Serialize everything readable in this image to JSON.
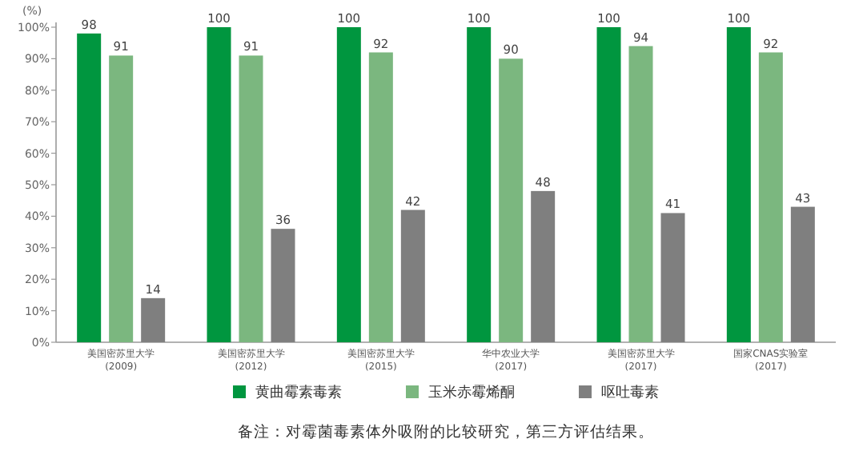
{
  "chart_data": {
    "type": "bar",
    "ylabel": "(%)",
    "categories": [
      "美国密苏里大学\n(2009)",
      "美国密苏里大学\n(2012)",
      "美国密苏里大学\n(2015)",
      "华中农业大学\n(2017)",
      "美国密苏里大学\n(2017)",
      "国家CNAS实验室\n(2017)"
    ],
    "series": [
      {
        "name": "黄曲霉素毒素",
        "color": "#00963f",
        "values": [
          98,
          100,
          100,
          100,
          100,
          100
        ]
      },
      {
        "name": "玉米赤霉烯酮",
        "color": "#7bb77f",
        "values": [
          91,
          91,
          92,
          90,
          94,
          92
        ]
      },
      {
        "name": "呕吐毒素",
        "color": "#7f7f7f",
        "values": [
          14,
          36,
          42,
          48,
          41,
          43
        ]
      }
    ],
    "ylim": [
      0,
      100
    ],
    "yticks": [
      {
        "value": 0,
        "label": "0%"
      },
      {
        "value": 10,
        "label": "10%"
      },
      {
        "value": 20,
        "label": "20%"
      },
      {
        "value": 30,
        "label": "30%"
      },
      {
        "value": 40,
        "label": "40%"
      },
      {
        "value": 50,
        "label": "50%"
      },
      {
        "value": 60,
        "label": "60%"
      },
      {
        "value": 70,
        "label": "70%"
      },
      {
        "value": 80,
        "label": "80%"
      },
      {
        "value": 90,
        "label": "90%"
      },
      {
        "value": 100,
        "label": "100%"
      }
    ],
    "data_labels": true,
    "grid": false,
    "legend": "bottom",
    "annotations": [
      "备注：对霉菌毒素体外吸附的比较研究，第三方评估结果。"
    ]
  }
}
